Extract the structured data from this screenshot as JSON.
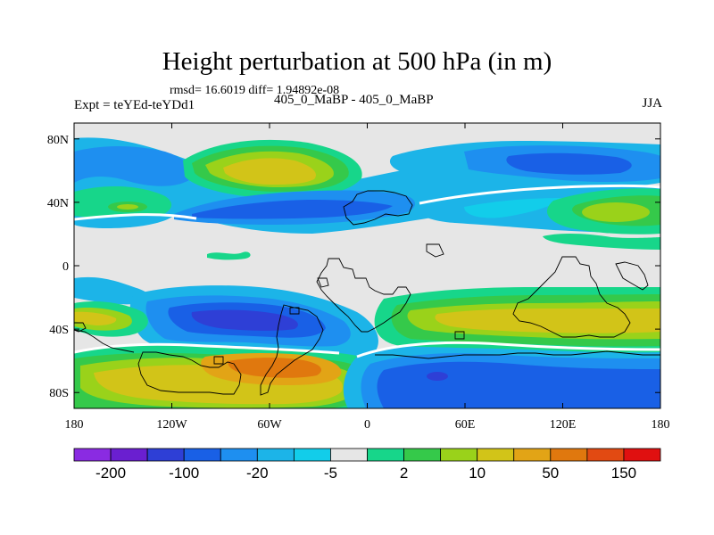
{
  "chart_data": {
    "type": "contour-map",
    "title": "Height perturbation at 500 hPa (in m)",
    "subtitle": "rmsd= 16.6019 diff= 1.94892e-08",
    "left_label": "Expt = teYEd-teYDd1",
    "center_label": "405_0_MaBP - 405_0_MaBP",
    "right_label": "JJA",
    "x_ticks": [
      "180",
      "120W",
      "60W",
      "0",
      "60E",
      "120E",
      "180"
    ],
    "y_ticks": [
      "80N",
      "40N",
      "0",
      "40S",
      "80S"
    ],
    "x_range_deg": [
      -180,
      180
    ],
    "y_range_deg": [
      -90,
      90
    ],
    "colorbar": {
      "colors": [
        "#8a2be2",
        "#6a1fd0",
        "#2e3fd6",
        "#1960e6",
        "#1e8ff0",
        "#1cb4e8",
        "#12cdea",
        "#e6e6e6",
        "#17d68a",
        "#35c94a",
        "#9ad21a",
        "#d2c418",
        "#e2a416",
        "#e0780e",
        "#e24a12",
        "#e01010"
      ],
      "labels": [
        "-200",
        "-100",
        "-20",
        "-5",
        "2",
        "10",
        "50",
        "150"
      ]
    },
    "colors": {
      "ocean_neutral": "#e6e6e6",
      "coast": "#000000"
    }
  }
}
